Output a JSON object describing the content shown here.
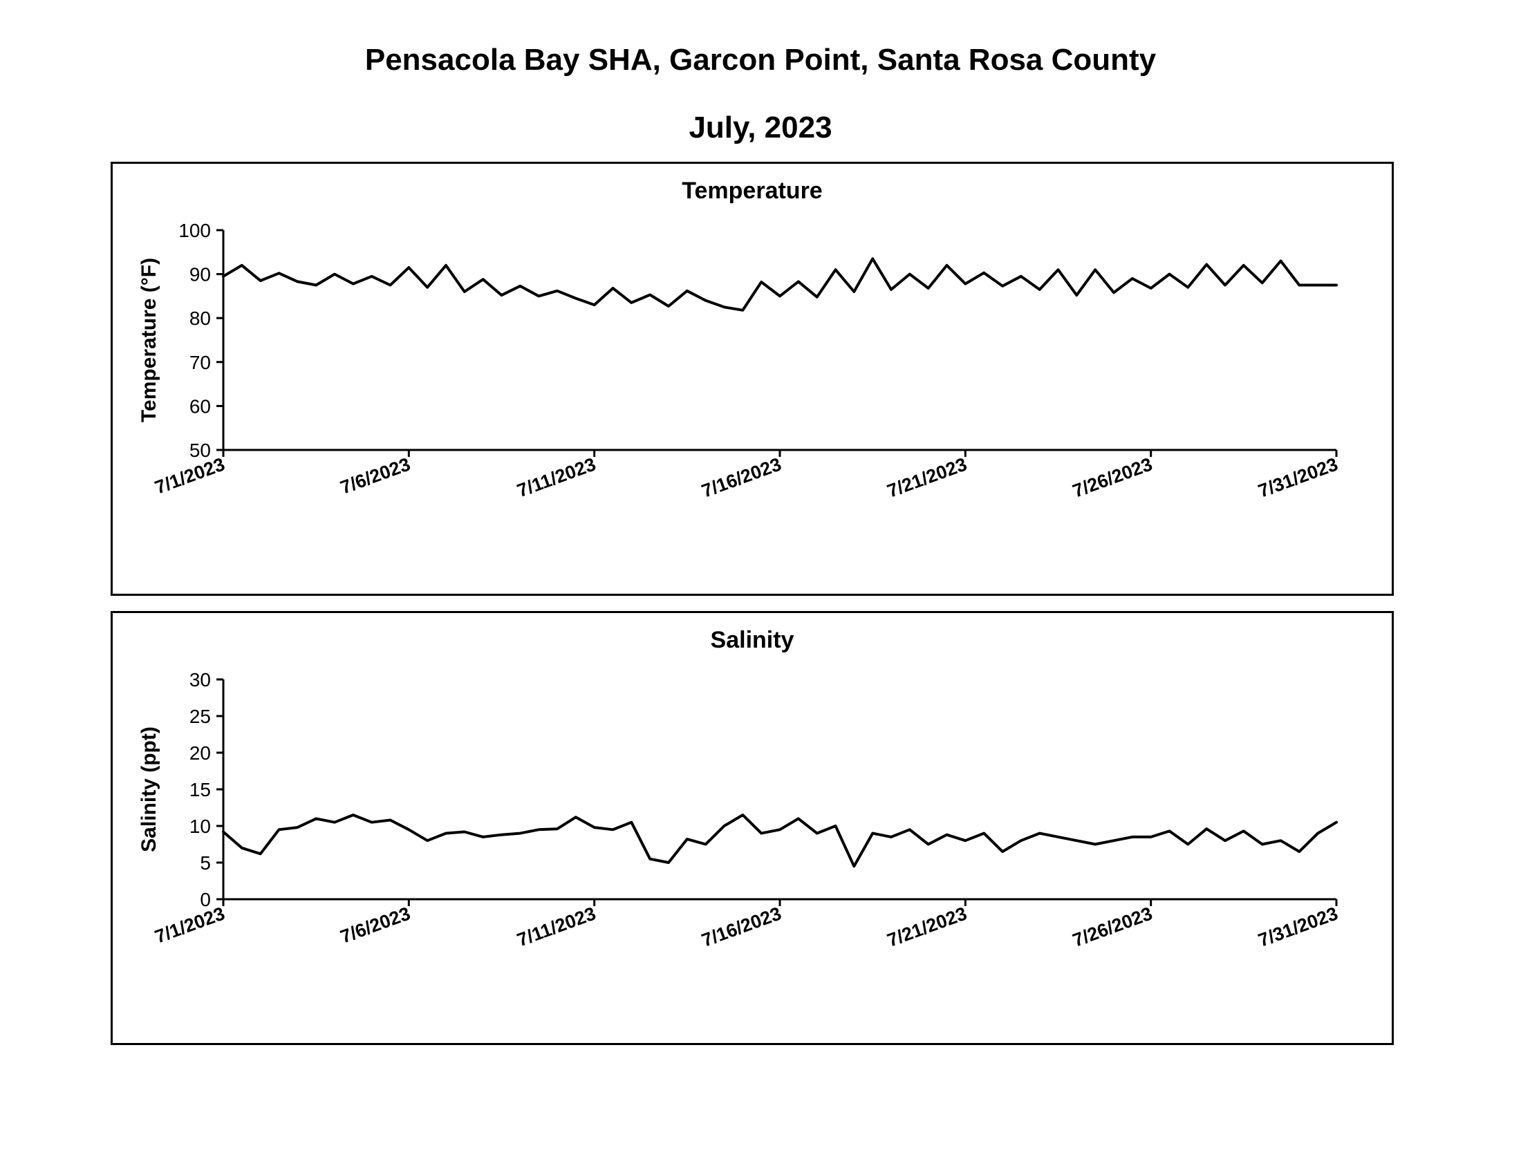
{
  "page": {
    "title": "Pensacola Bay SHA, Garcon Point, Santa Rosa County",
    "subtitle": "July, 2023"
  },
  "chart_data": [
    {
      "type": "line",
      "title": "Temperature",
      "xlabel": "",
      "ylabel": "Temperature (°F)",
      "ylim": [
        50,
        100
      ],
      "yticks": [
        "50",
        "60",
        "70",
        "80",
        "90",
        "100"
      ],
      "xlim": [
        "7/1/2023",
        "7/31/2023"
      ],
      "xticks": [
        "7/1/2023",
        "7/6/2023",
        "7/11/2023",
        "7/16/2023",
        "7/21/2023",
        "7/26/2023",
        "7/31/2023"
      ],
      "grid": false,
      "line_color": "#000000",
      "series": [
        {
          "x": [
            "7/1/2023 00:00",
            "7/1/2023 12:00",
            "7/2/2023 00:00",
            "7/2/2023 12:00",
            "7/3/2023 00:00",
            "7/3/2023 12:00",
            "7/4/2023 00:00",
            "7/4/2023 12:00",
            "7/5/2023 00:00",
            "7/5/2023 12:00",
            "7/6/2023 00:00",
            "7/6/2023 12:00",
            "7/7/2023 00:00",
            "7/7/2023 12:00",
            "7/8/2023 00:00",
            "7/8/2023 12:00",
            "7/9/2023 00:00",
            "7/9/2023 12:00",
            "7/10/2023 00:00",
            "7/10/2023 12:00",
            "7/11/2023 00:00",
            "7/11/2023 12:00",
            "7/12/2023 00:00",
            "7/12/2023 12:00",
            "7/13/2023 00:00",
            "7/13/2023 12:00",
            "7/14/2023 00:00",
            "7/14/2023 12:00",
            "7/15/2023 00:00",
            "7/15/2023 12:00",
            "7/16/2023 00:00",
            "7/16/2023 12:00",
            "7/17/2023 00:00",
            "7/17/2023 12:00",
            "7/18/2023 00:00",
            "7/18/2023 12:00",
            "7/19/2023 00:00",
            "7/19/2023 12:00",
            "7/20/2023 00:00",
            "7/20/2023 12:00",
            "7/21/2023 00:00",
            "7/21/2023 12:00",
            "7/22/2023 00:00",
            "7/22/2023 12:00",
            "7/23/2023 00:00",
            "7/23/2023 12:00",
            "7/24/2023 00:00",
            "7/24/2023 12:00",
            "7/25/2023 00:00",
            "7/25/2023 12:00",
            "7/26/2023 00:00",
            "7/26/2023 12:00",
            "7/27/2023 00:00",
            "7/27/2023 12:00",
            "7/28/2023 00:00",
            "7/28/2023 12:00",
            "7/29/2023 00:00",
            "7/29/2023 12:00",
            "7/30/2023 00:00",
            "7/30/2023 12:00",
            "7/31/2023 00:00"
          ],
          "y": [
            89.5,
            92.0,
            88.5,
            90.2,
            88.3,
            87.5,
            90.0,
            87.8,
            89.5,
            87.5,
            91.5,
            87.0,
            92.0,
            86.0,
            88.8,
            85.2,
            87.3,
            85.0,
            86.2,
            84.5,
            83.0,
            86.8,
            83.5,
            85.3,
            82.7,
            86.2,
            84.0,
            82.5,
            81.8,
            88.2,
            85.0,
            88.3,
            84.8,
            91.0,
            86.0,
            93.5,
            86.5,
            90.0,
            86.8,
            92.0,
            87.8,
            90.3,
            87.3,
            89.5,
            86.5,
            91.0,
            85.2,
            91.0,
            85.8,
            89.0,
            86.8,
            90.0,
            87.0,
            92.2,
            87.5,
            92.0,
            88.0,
            93.0,
            87.5,
            87.5,
            87.5
          ]
        }
      ]
    },
    {
      "type": "line",
      "title": "Salinity",
      "xlabel": "",
      "ylabel": "Salinity (ppt)",
      "ylim": [
        0,
        30
      ],
      "yticks": [
        "0",
        "5",
        "10",
        "15",
        "20",
        "25",
        "30"
      ],
      "xlim": [
        "7/1/2023",
        "7/31/2023"
      ],
      "xticks": [
        "7/1/2023",
        "7/6/2023",
        "7/11/2023",
        "7/16/2023",
        "7/21/2023",
        "7/26/2023",
        "7/31/2023"
      ],
      "grid": false,
      "line_color": "#000000",
      "series": [
        {
          "x": [
            "7/1/2023 00:00",
            "7/1/2023 12:00",
            "7/2/2023 00:00",
            "7/2/2023 12:00",
            "7/3/2023 00:00",
            "7/3/2023 12:00",
            "7/4/2023 00:00",
            "7/4/2023 12:00",
            "7/5/2023 00:00",
            "7/5/2023 12:00",
            "7/6/2023 00:00",
            "7/6/2023 12:00",
            "7/7/2023 00:00",
            "7/7/2023 12:00",
            "7/8/2023 00:00",
            "7/8/2023 12:00",
            "7/9/2023 00:00",
            "7/9/2023 12:00",
            "7/10/2023 00:00",
            "7/10/2023 12:00",
            "7/11/2023 00:00",
            "7/11/2023 12:00",
            "7/12/2023 00:00",
            "7/12/2023 12:00",
            "7/13/2023 00:00",
            "7/13/2023 12:00",
            "7/14/2023 00:00",
            "7/14/2023 12:00",
            "7/15/2023 00:00",
            "7/15/2023 12:00",
            "7/16/2023 00:00",
            "7/16/2023 12:00",
            "7/17/2023 00:00",
            "7/17/2023 12:00",
            "7/18/2023 00:00",
            "7/18/2023 12:00",
            "7/19/2023 00:00",
            "7/19/2023 12:00",
            "7/20/2023 00:00",
            "7/20/2023 12:00",
            "7/21/2023 00:00",
            "7/21/2023 12:00",
            "7/22/2023 00:00",
            "7/22/2023 12:00",
            "7/23/2023 00:00",
            "7/23/2023 12:00",
            "7/24/2023 00:00",
            "7/24/2023 12:00",
            "7/25/2023 00:00",
            "7/25/2023 12:00",
            "7/26/2023 00:00",
            "7/26/2023 12:00",
            "7/27/2023 00:00",
            "7/27/2023 12:00",
            "7/28/2023 00:00",
            "7/28/2023 12:00",
            "7/29/2023 00:00",
            "7/29/2023 12:00",
            "7/30/2023 00:00",
            "7/30/2023 12:00",
            "7/31/2023 00:00"
          ],
          "y": [
            9.2,
            7.0,
            6.2,
            9.5,
            9.8,
            11.0,
            10.5,
            11.5,
            10.5,
            10.8,
            9.5,
            8.0,
            9.0,
            9.2,
            8.5,
            8.8,
            9.0,
            9.5,
            9.6,
            11.2,
            9.8,
            9.5,
            10.5,
            5.5,
            5.0,
            8.2,
            7.5,
            10.0,
            11.5,
            9.0,
            9.5,
            11.0,
            9.0,
            10.0,
            4.5,
            9.0,
            8.5,
            9.5,
            7.5,
            8.8,
            8.0,
            9.0,
            6.5,
            8.0,
            9.0,
            8.5,
            8.0,
            7.5,
            8.0,
            8.5,
            8.5,
            9.3,
            7.5,
            9.6,
            8.0,
            9.3,
            7.5,
            8.0,
            6.5,
            9.0,
            10.5
          ]
        }
      ]
    }
  ]
}
